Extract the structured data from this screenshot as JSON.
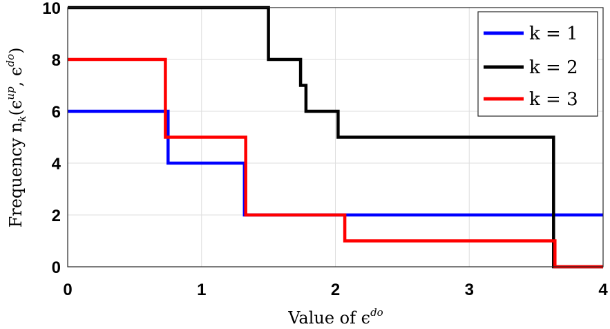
{
  "chart_data": {
    "type": "line",
    "xlabel": "Value of ϵ",
    "xlabel_superscript": "do",
    "ylabel": "Frequency n",
    "ylabel_subscript": "k",
    "ylabel_args": "(ϵ",
    "ylabel_arg1_sup": "up",
    "ylabel_sep": ", ϵ",
    "ylabel_arg2_sup": "do",
    "ylabel_close": ")",
    "xlim": [
      0,
      4
    ],
    "ylim": [
      0,
      10
    ],
    "xticks": [
      "0",
      "1",
      "2",
      "3",
      "4"
    ],
    "yticks": [
      "0",
      "2",
      "4",
      "6",
      "8",
      "10"
    ],
    "grid": true,
    "legend_position": "top-right",
    "step": true,
    "series": [
      {
        "name": "k = 1",
        "color": "#0000ff",
        "x": [
          0,
          0.75,
          0.75,
          1.32,
          1.32,
          1.5,
          1.5,
          4
        ],
        "y": [
          6,
          6,
          4,
          4,
          2,
          2,
          2,
          2
        ]
      },
      {
        "name": "k = 2",
        "color": "#000000",
        "x": [
          0,
          1.5,
          1.5,
          1.74,
          1.74,
          1.78,
          1.78,
          2.02,
          2.02,
          3.63,
          3.63,
          4
        ],
        "y": [
          10,
          10,
          8,
          8,
          7,
          7,
          6,
          6,
          5,
          5,
          0,
          0
        ]
      },
      {
        "name": "k = 3",
        "color": "#ff0000",
        "x": [
          0,
          0.73,
          0.73,
          1.33,
          1.33,
          2.07,
          2.07,
          3.64,
          3.64,
          4
        ],
        "y": [
          8,
          8,
          5,
          5,
          2,
          2,
          1,
          1,
          0,
          0
        ]
      }
    ]
  }
}
